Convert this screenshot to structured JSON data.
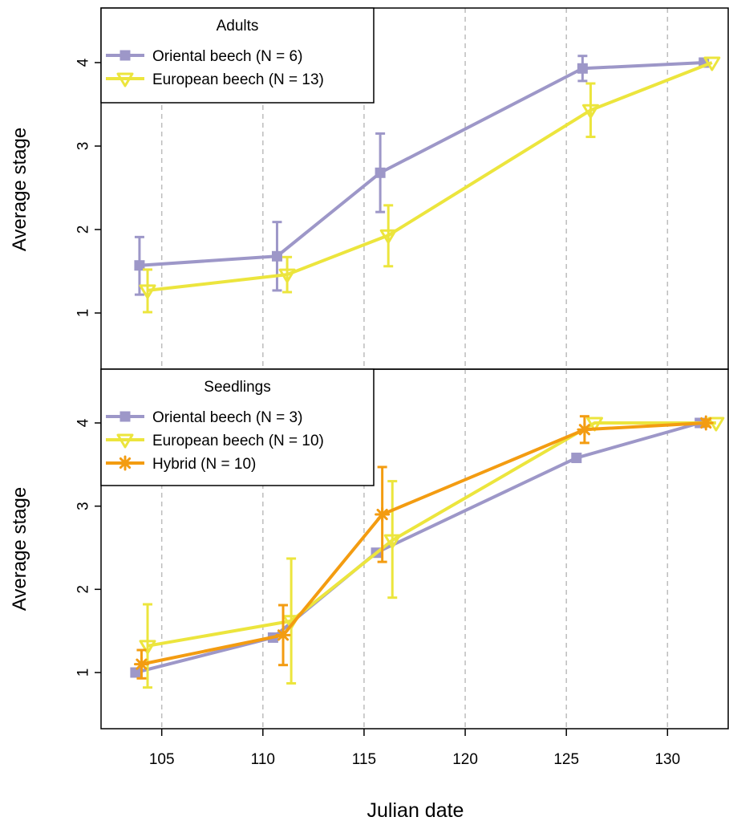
{
  "chart_data": [
    {
      "type": "line",
      "title": "",
      "legend_title": "Adults",
      "legend_placement": "top-left",
      "xlabel": "",
      "ylabel": "Average stage",
      "ylim": [
        0.4,
        4.6
      ],
      "xlim": [
        102,
        133
      ],
      "yticks": [
        "1",
        "2",
        "3",
        "4"
      ],
      "grid": "vertical dashed at 105, 110, 115, 120, 125, 130",
      "series": [
        {
          "name": "Oriental beech (N = 6)",
          "color": "#9D97C8",
          "marker": "square",
          "points": [
            {
              "x": 103.9,
              "y": 1.57,
              "lo": 1.22,
              "hi": 1.91
            },
            {
              "x": 110.7,
              "y": 1.68,
              "lo": 1.27,
              "hi": 2.09
            },
            {
              "x": 115.8,
              "y": 2.68,
              "lo": 2.21,
              "hi": 3.15
            },
            {
              "x": 125.8,
              "y": 3.93,
              "lo": 3.78,
              "hi": 4.08
            },
            {
              "x": 131.8,
              "y": 4.0,
              "lo": 4.0,
              "hi": 4.0
            }
          ]
        },
        {
          "name": "European beech (N = 13)",
          "color": "#ECE53D",
          "marker": "triangle-down",
          "points": [
            {
              "x": 104.3,
              "y": 1.27,
              "lo": 1.01,
              "hi": 1.52
            },
            {
              "x": 111.2,
              "y": 1.46,
              "lo": 1.25,
              "hi": 1.67
            },
            {
              "x": 116.2,
              "y": 1.93,
              "lo": 1.56,
              "hi": 2.29
            },
            {
              "x": 126.2,
              "y": 3.43,
              "lo": 3.11,
              "hi": 3.75
            },
            {
              "x": 132.2,
              "y": 4.0,
              "lo": 4.0,
              "hi": 4.0
            }
          ]
        }
      ]
    },
    {
      "type": "line",
      "title": "",
      "legend_title": "Seedlings",
      "legend_placement": "top-left",
      "xlabel": "Julian date",
      "ylabel": "Average stage",
      "ylim": [
        0.4,
        4.6
      ],
      "xlim": [
        102,
        133
      ],
      "yticks": [
        "1",
        "2",
        "3",
        "4"
      ],
      "xticks": [
        "105",
        "110",
        "115",
        "120",
        "125",
        "130"
      ],
      "grid": "vertical dashed at 105, 110, 115, 120, 125, 130",
      "series": [
        {
          "name": "Oriental beech (N = 3)",
          "color": "#9D97C8",
          "marker": "square",
          "points": [
            {
              "x": 103.7,
              "y": 1.0,
              "lo": 1.0,
              "hi": 1.0
            },
            {
              "x": 110.5,
              "y": 1.42,
              "lo": 1.42,
              "hi": 1.42
            },
            {
              "x": 115.6,
              "y": 2.44,
              "lo": 2.44,
              "hi": 2.44
            },
            {
              "x": 125.5,
              "y": 3.58,
              "lo": 3.58,
              "hi": 3.58
            },
            {
              "x": 131.6,
              "y": 4.0,
              "lo": 4.0,
              "hi": 4.0
            }
          ]
        },
        {
          "name": "European beech (N = 10)",
          "color": "#ECE53D",
          "marker": "triangle-down",
          "points": [
            {
              "x": 104.3,
              "y": 1.32,
              "lo": 0.82,
              "hi": 1.82
            },
            {
              "x": 111.4,
              "y": 1.62,
              "lo": 0.87,
              "hi": 2.37
            },
            {
              "x": 116.4,
              "y": 2.59,
              "lo": 1.9,
              "hi": 3.3
            },
            {
              "x": 126.4,
              "y": 4.0,
              "lo": 4.0,
              "hi": 4.0
            },
            {
              "x": 132.4,
              "y": 4.0,
              "lo": 4.0,
              "hi": 4.0
            }
          ]
        },
        {
          "name": "Hybrid (N = 10)",
          "color": "#F39C11",
          "marker": "asterisk",
          "points": [
            {
              "x": 104.0,
              "y": 1.1,
              "lo": 0.93,
              "hi": 1.27
            },
            {
              "x": 111.0,
              "y": 1.45,
              "lo": 1.09,
              "hi": 1.81
            },
            {
              "x": 115.9,
              "y": 2.9,
              "lo": 2.33,
              "hi": 3.47
            },
            {
              "x": 125.9,
              "y": 3.92,
              "lo": 3.76,
              "hi": 4.08
            },
            {
              "x": 131.9,
              "y": 4.0,
              "lo": 3.96,
              "hi": 4.04
            }
          ]
        }
      ]
    }
  ]
}
